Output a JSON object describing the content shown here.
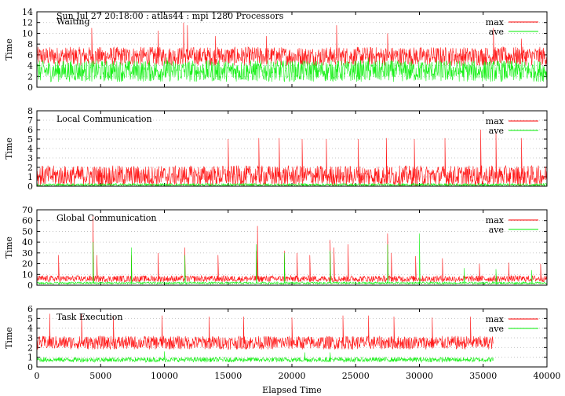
{
  "header": {
    "run_info": "Sun Jul 27 20:18:00 : atlas44 : mpi 1280 Processors"
  },
  "chart_data": [
    {
      "type": "line",
      "title": "Waiting",
      "ylabel": "Time",
      "xlabel": "",
      "ylim": [
        0,
        14
      ],
      "yticks": [
        0,
        2,
        4,
        6,
        8,
        10,
        12,
        14
      ],
      "xlim": [
        0,
        40000
      ],
      "grid": true,
      "legend": "top-right",
      "series": [
        {
          "name": "max",
          "color": "#ff0000",
          "x_end": 40000,
          "baseline_range": [
            4,
            7.5
          ],
          "spikes": [
            [
              4300,
              11
            ],
            [
              9500,
              10.5
            ],
            [
              11500,
              12
            ],
            [
              11800,
              11.5
            ],
            [
              14000,
              9.5
            ],
            [
              18000,
              9.5
            ],
            [
              23500,
              11.5
            ],
            [
              27500,
              10
            ],
            [
              35800,
              11
            ],
            [
              38000,
              9
            ]
          ]
        },
        {
          "name": "ave",
          "color": "#00ee00",
          "x_end": 40000,
          "baseline_range": [
            1,
            5
          ],
          "spikes": [
            [
              10200,
              5.5
            ],
            [
              26000,
              5.5
            ]
          ]
        }
      ]
    },
    {
      "type": "line",
      "title": "Local Communication",
      "ylabel": "Time",
      "xlabel": "",
      "ylim": [
        0,
        8
      ],
      "yticks": [
        0,
        1,
        2,
        3,
        4,
        5,
        6,
        7,
        8
      ],
      "xlim": [
        0,
        40000
      ],
      "grid": true,
      "legend": "top-right",
      "series": [
        {
          "name": "max",
          "color": "#ff0000",
          "x_end": 40000,
          "baseline_range": [
            0,
            2.2
          ],
          "spikes": [
            [
              15000,
              5
            ],
            [
              17400,
              5.1
            ],
            [
              19000,
              5.1
            ],
            [
              20800,
              5
            ],
            [
              22700,
              5
            ],
            [
              25200,
              5
            ],
            [
              27400,
              5.1
            ],
            [
              29600,
              5
            ],
            [
              32000,
              5.1
            ],
            [
              34800,
              6
            ],
            [
              36000,
              5.8
            ],
            [
              38000,
              5.1
            ]
          ]
        },
        {
          "name": "ave",
          "color": "#00ee00",
          "x_end": 40000,
          "baseline_range": [
            0,
            0.3
          ],
          "spikes": []
        }
      ]
    },
    {
      "type": "line",
      "title": "Global Communication",
      "ylabel": "Time",
      "xlabel": "",
      "ylim": [
        0,
        70
      ],
      "yticks": [
        0,
        10,
        20,
        30,
        40,
        50,
        60,
        70
      ],
      "xlim": [
        0,
        40000
      ],
      "grid": true,
      "legend": "top-right",
      "series": [
        {
          "name": "max",
          "color": "#ff0000",
          "x_end": 40000,
          "baseline_range": [
            3,
            9
          ],
          "spikes": [
            [
              1700,
              28
            ],
            [
              4400,
              65
            ],
            [
              4700,
              28
            ],
            [
              7400,
              28
            ],
            [
              9500,
              30
            ],
            [
              11600,
              35
            ],
            [
              14200,
              28
            ],
            [
              17200,
              32
            ],
            [
              17300,
              55
            ],
            [
              19400,
              32
            ],
            [
              20400,
              30
            ],
            [
              21400,
              28
            ],
            [
              23000,
              42
            ],
            [
              23300,
              35
            ],
            [
              24400,
              38
            ],
            [
              27500,
              48
            ],
            [
              27800,
              30
            ],
            [
              29700,
              27
            ],
            [
              31800,
              25
            ],
            [
              34700,
              20
            ],
            [
              37000,
              21
            ],
            [
              39500,
              20
            ]
          ]
        },
        {
          "name": "ave",
          "color": "#00ee00",
          "x_end": 40000,
          "baseline_range": [
            1,
            3
          ],
          "spikes": [
            [
              4400,
              40
            ],
            [
              7400,
              35
            ],
            [
              11600,
              28
            ],
            [
              17200,
              38
            ],
            [
              19400,
              30
            ],
            [
              23000,
              32
            ],
            [
              27500,
              38
            ],
            [
              30000,
              48
            ],
            [
              33500,
              16
            ],
            [
              36000,
              15
            ],
            [
              38800,
              14
            ]
          ]
        }
      ]
    },
    {
      "type": "line",
      "title": "Task Execution",
      "ylabel": "Time",
      "xlabel": "Elapsed Time",
      "ylim": [
        0,
        6
      ],
      "yticks": [
        0,
        1,
        2,
        3,
        4,
        5,
        6
      ],
      "xlim": [
        0,
        40000
      ],
      "xticks": [
        0,
        5000,
        10000,
        15000,
        20000,
        25000,
        30000,
        35000,
        40000
      ],
      "grid": true,
      "legend": "top-right",
      "series": [
        {
          "name": "max",
          "color": "#ff0000",
          "x_end": 35800,
          "baseline_range": [
            1.8,
            3.2
          ],
          "spikes": [
            [
              1000,
              5.5
            ],
            [
              3500,
              5.5
            ],
            [
              6000,
              5.2
            ],
            [
              9800,
              5.3
            ],
            [
              13500,
              5.2
            ],
            [
              16200,
              5.2
            ],
            [
              20000,
              5.1
            ],
            [
              24000,
              5.3
            ],
            [
              26000,
              5.3
            ],
            [
              28000,
              5.2
            ],
            [
              31000,
              5.1
            ],
            [
              34000,
              5.2
            ]
          ]
        },
        {
          "name": "ave",
          "color": "#00ee00",
          "x_end": 35800,
          "baseline_range": [
            0.5,
            1.0
          ],
          "spikes": [
            [
              10000,
              1.6
            ],
            [
              21000,
              1.5
            ],
            [
              23000,
              1.5
            ]
          ]
        }
      ]
    }
  ]
}
